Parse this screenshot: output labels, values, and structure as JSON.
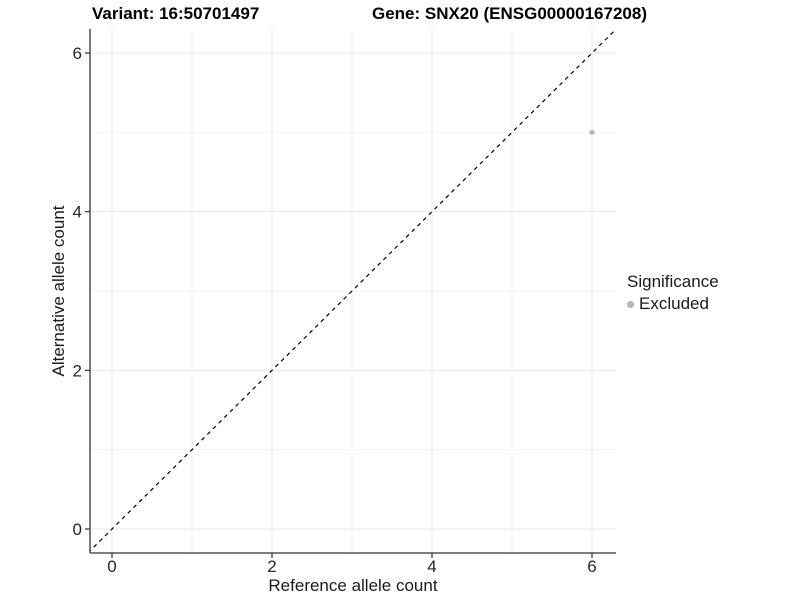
{
  "header": {
    "title_left": "Variant: 16:50701497",
    "title_right": "Gene: SNX20 (ENSG00000167208)"
  },
  "chart_data": {
    "type": "scatter",
    "title": "Variant: 16:50701497 | Gene: SNX20 (ENSG00000167208)",
    "xlabel": "Reference allele count",
    "ylabel": "Alternative allele count",
    "xlim": [
      -0.3,
      6.3
    ],
    "ylim": [
      -0.3,
      6.3
    ],
    "xticks": [
      0,
      2,
      4,
      6
    ],
    "yticks": [
      0,
      2,
      4,
      6
    ],
    "minor_xticks": [
      1,
      3,
      5
    ],
    "minor_yticks": [
      1,
      3,
      5
    ],
    "grid": "major and minor, light gray on white",
    "points": [
      {
        "x": 6,
        "y": 5,
        "significance": "Excluded"
      }
    ],
    "identity_line": {
      "style": "dashed",
      "slope": 1,
      "intercept": 0
    },
    "legend": {
      "title": "Significance",
      "position": "right",
      "entries": [
        {
          "label": "Excluded",
          "color": "#b5b5b5"
        }
      ]
    },
    "colors": {
      "grid_major": "#e8e8e8",
      "grid_minor": "#f2f2f2",
      "axis": "#333333",
      "tick_label": "#262626",
      "dashed_line": "#000000",
      "point": "#b5b5b5",
      "background": "#ffffff"
    }
  }
}
